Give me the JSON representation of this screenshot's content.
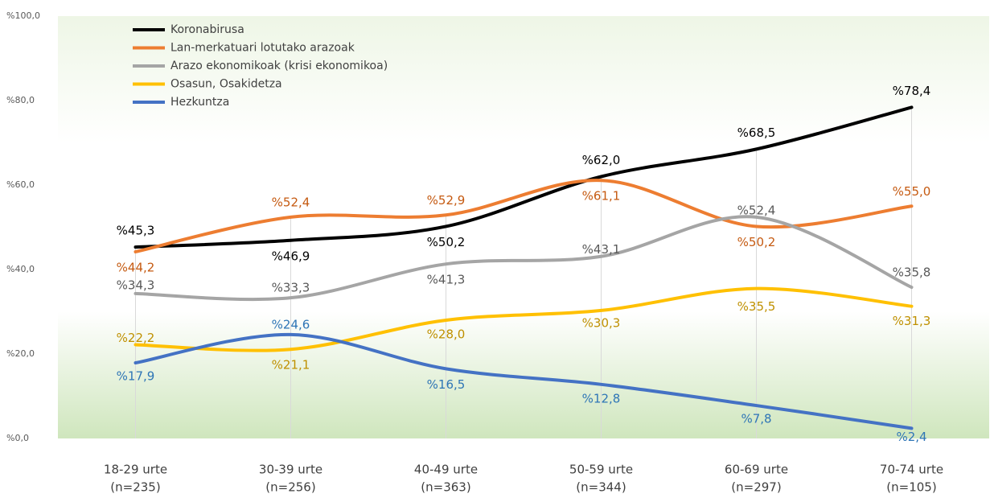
{
  "chart_data": {
    "type": "line",
    "categories": [
      [
        "18-29 urte",
        "(n=235)"
      ],
      [
        "30-39 urte",
        "(n=256)"
      ],
      [
        "40-49 urte",
        "(n=363)"
      ],
      [
        "50-59 urte",
        "(n=344)"
      ],
      [
        "60-69 urte",
        "(n=297)"
      ],
      [
        "70-74 urte",
        "(n=105)"
      ]
    ],
    "series": [
      {
        "name": "Koronabirusa",
        "color": "#000000",
        "label_color": "#000000",
        "values": [
          45.3,
          46.9,
          50.2,
          62.0,
          68.5,
          78.4
        ],
        "value_labels": [
          "%45,3",
          "%46,9",
          "%50,2",
          "%62,0",
          "%68,5",
          "%78,4"
        ]
      },
      {
        "name": "Lan-merkatuari lotutako arazoak",
        "color": "#ED7D31",
        "label_color": "#C55A11",
        "values": [
          44.2,
          52.4,
          52.9,
          61.1,
          50.2,
          55.0
        ],
        "value_labels": [
          "%44,2",
          "%52,4",
          "%52,9",
          "%61,1",
          "%50,2",
          "%55,0"
        ]
      },
      {
        "name": "Arazo ekonomikoak (krisi ekonomikoa)",
        "color": "#A5A5A5",
        "label_color": "#595959",
        "values": [
          34.3,
          33.3,
          41.3,
          43.1,
          52.4,
          35.8
        ],
        "value_labels": [
          "%34,3",
          "%33,3",
          "%41,3",
          "%43,1",
          "%52,4",
          "%35,8"
        ]
      },
      {
        "name": "Osasun, Osakidetza",
        "color": "#FFC000",
        "label_color": "#BF9000",
        "values": [
          22.2,
          21.1,
          28.0,
          30.3,
          35.5,
          31.3
        ],
        "value_labels": [
          "%22,2",
          "%21,1",
          "%28,0",
          "%30,3",
          "%35,5",
          "%31,3"
        ]
      },
      {
        "name": "Hezkuntza",
        "color": "#4472C4",
        "label_color": "#2E75B6",
        "values": [
          17.9,
          24.6,
          16.5,
          12.8,
          7.8,
          2.4
        ],
        "value_labels": [
          "%17,9",
          "%24,6",
          "%16,5",
          "%12,8",
          "%7,8",
          "%2,4"
        ]
      }
    ],
    "ylim": [
      0,
      100
    ],
    "yticks": [
      {
        "value": 0,
        "label": "%0,0"
      },
      {
        "value": 20,
        "label": "%20,0"
      },
      {
        "value": 40,
        "label": "%40,0"
      },
      {
        "value": 60,
        "label": "%60,0"
      },
      {
        "value": 80,
        "label": "%80,0"
      },
      {
        "value": 100,
        "label": "%100,0"
      }
    ],
    "legend": "upper left",
    "smooth": true,
    "drop_lines": true
  }
}
